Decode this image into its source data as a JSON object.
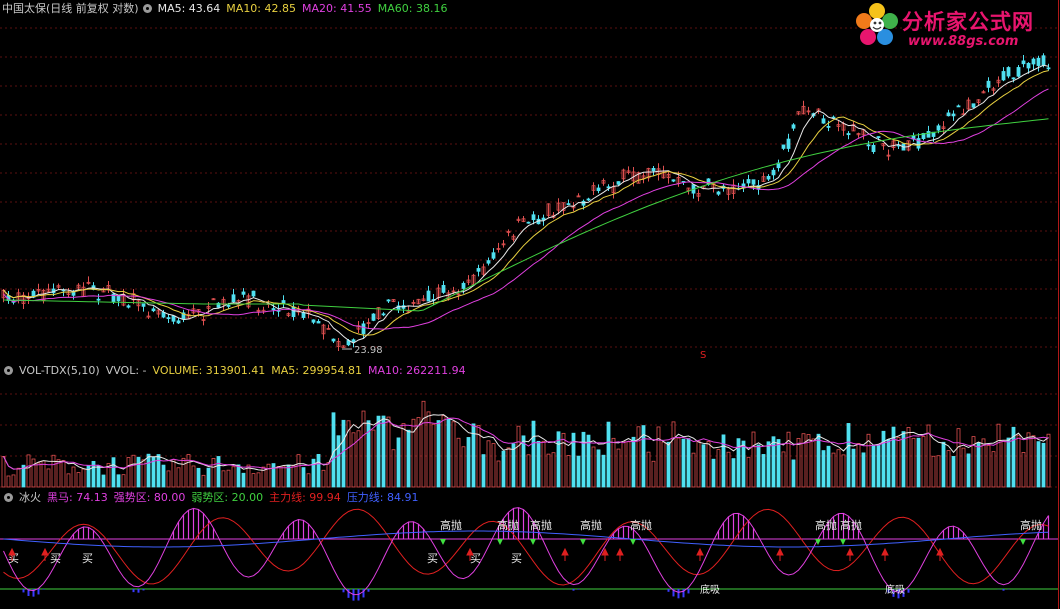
{
  "price_pane": {
    "symbol": "中国太保(日线 前复权 对数)",
    "ma": [
      {
        "label": "MA5: 43.64",
        "color": "#e8e8e8"
      },
      {
        "label": "MA10: 42.85",
        "color": "#e8d040"
      },
      {
        "label": "MA20: 41.55",
        "color": "#e040e0"
      },
      {
        "label": "MA60: 38.16",
        "color": "#40d040"
      }
    ],
    "low_label": "23.98",
    "s_marker": "S"
  },
  "volume_pane": {
    "indicator": "VOL-TDX(5,10)",
    "vvol": "VVOL: -",
    "values": [
      {
        "label": "VOLUME: 313901.41",
        "color": "#e8e8e8"
      },
      {
        "label": "MA5: 299954.81",
        "color": "#e8d040"
      },
      {
        "label": "MA10: 262211.94",
        "color": "#e040e0"
      }
    ]
  },
  "bingfire_pane": {
    "indicator": "冰火",
    "values": [
      {
        "label": "黑马: 74.13",
        "color": "#e040e0"
      },
      {
        "label": "强势区: 80.00",
        "color": "#e040e0"
      },
      {
        "label": "弱势区: 20.00",
        "color": "#40d040"
      },
      {
        "label": "主力线: 99.94",
        "color": "#e02020"
      },
      {
        "label": "压力线: 84.91",
        "color": "#4060ff"
      }
    ],
    "sell_label": "高抛",
    "buy_label": "买",
    "bottom_label": "底吸"
  },
  "logo": {
    "title": "分析家公式网",
    "url": "www.88gs.com"
  },
  "colors": {
    "up": "#e05050",
    "down": "#50e0f0",
    "bg": "#000000"
  }
}
